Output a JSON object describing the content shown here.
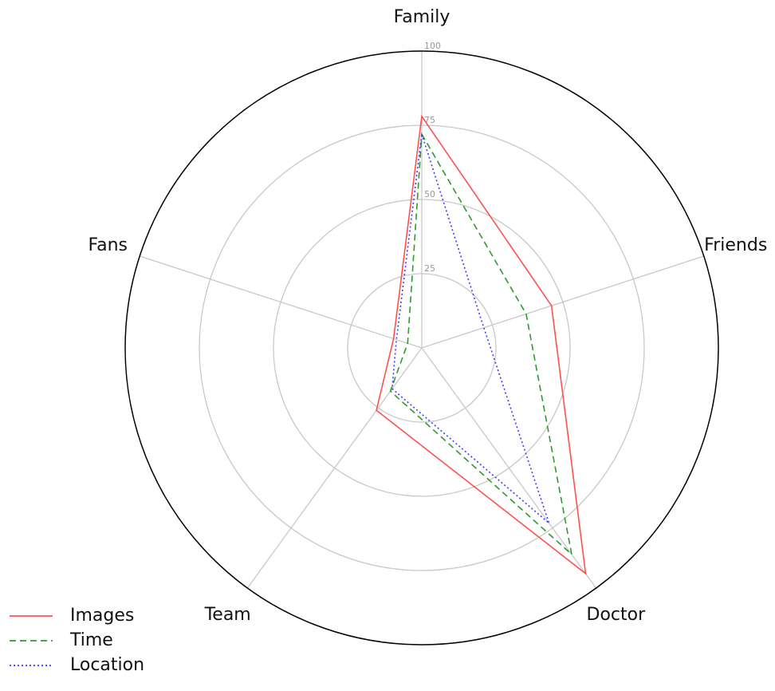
{
  "chart_data": {
    "type": "radar",
    "categories": [
      "Family",
      "Friends",
      "Doctor",
      "Team",
      "Fans"
    ],
    "series": [
      {
        "name": "Images",
        "color": "#ff5050",
        "dash": "solid",
        "values": [
          78,
          46,
          94,
          26,
          10
        ]
      },
      {
        "name": "Time",
        "color": "#2e9a2e",
        "dash": "dashed",
        "values": [
          72,
          37,
          86,
          18,
          5
        ]
      },
      {
        "name": "Location",
        "color": "#3a3aff",
        "dash": "dotted",
        "values": [
          72,
          22,
          73,
          17,
          9
        ]
      }
    ],
    "ylim": [
      0,
      100
    ],
    "yticks": [
      25,
      50,
      75,
      100
    ],
    "grid": true,
    "legend": "lower left"
  }
}
